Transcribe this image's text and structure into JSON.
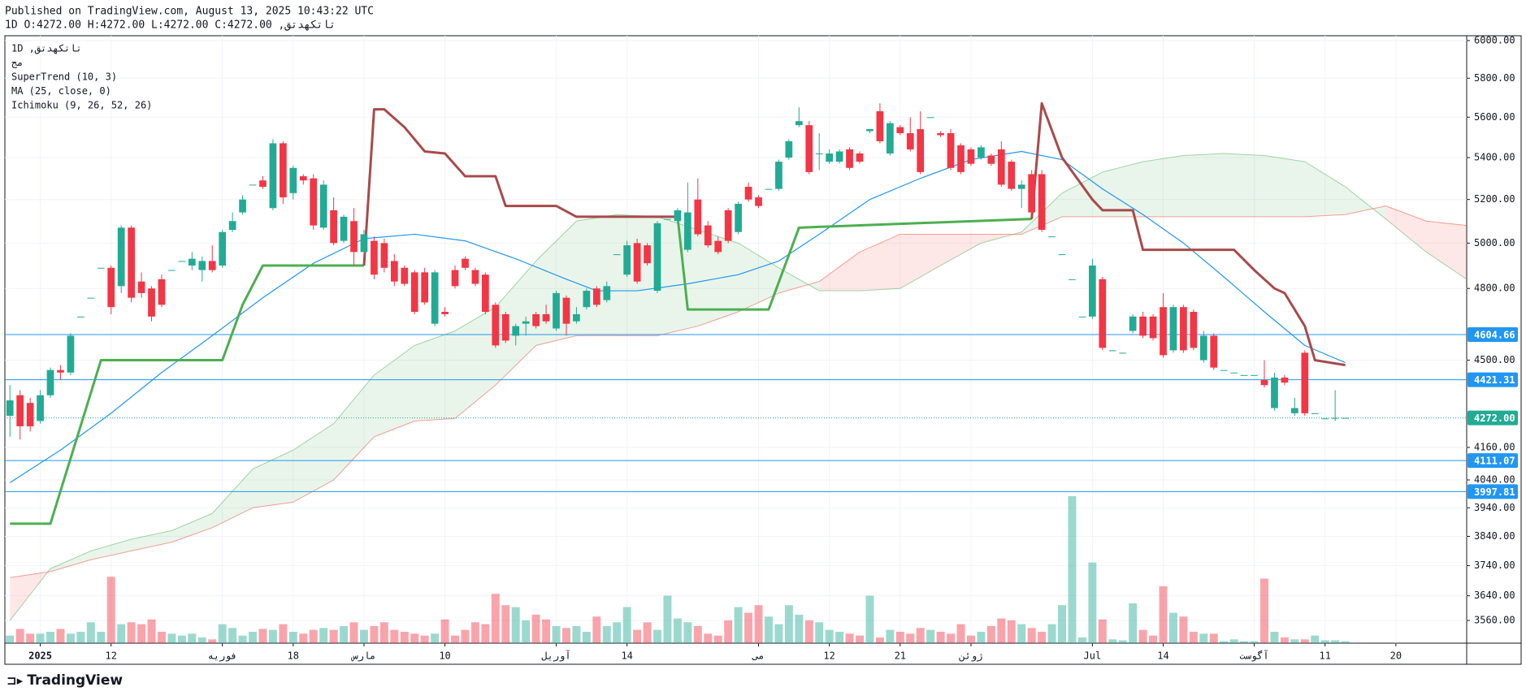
{
  "header": {
    "published": "Published on TradingView.com, August 13, 2025 10:43:22 UTC",
    "ohlc_line": "تاتکهدتق, 1D O:4272.00 H:4272.00 L:4272.00 C:4272.00"
  },
  "footer": {
    "brand": "TradingView"
  },
  "chart_data": {
    "type": "candlestick",
    "legend_lines": [
      "تاتکهدتق, 1D",
      "مج",
      "SuperTrend (10, 3)",
      "MA (25, close, 0)",
      "Ichimoku (9, 26, 52, 26)"
    ],
    "log_scale": true,
    "grid": true,
    "up_color": "#22ab94",
    "down_color": "#f23645",
    "volume_up_color": "rgba(34,171,148,0.45)",
    "volume_down_color": "rgba(242,54,69,0.45)",
    "xlim": [
      -0.5,
      144
    ],
    "xticks": [
      {
        "value": 3,
        "label": "2025"
      },
      {
        "value": 10,
        "label": "12"
      },
      {
        "value": 21,
        "label": "فوریه"
      },
      {
        "value": 28,
        "label": "18"
      },
      {
        "value": 35,
        "label": "مارس"
      },
      {
        "value": 43,
        "label": "10"
      },
      {
        "value": 54,
        "label": "آوریل"
      },
      {
        "value": 61,
        "label": "14"
      },
      {
        "value": 74,
        "label": "می"
      },
      {
        "value": 81,
        "label": "12"
      },
      {
        "value": 88,
        "label": "21"
      },
      {
        "value": 95,
        "label": "ژوئن"
      },
      {
        "value": 107,
        "label": "Jul"
      },
      {
        "value": 114,
        "label": "14"
      },
      {
        "value": 123,
        "label": "آگوست"
      },
      {
        "value": 130,
        "label": "11"
      },
      {
        "value": 137,
        "label": "20"
      }
    ],
    "ylim": [
      3488,
      6026
    ],
    "yticks": [
      {
        "value": 6000,
        "label": "6000.00"
      },
      {
        "value": 5800,
        "label": "5800.00"
      },
      {
        "value": 5600,
        "label": "5600.00"
      },
      {
        "value": 5400,
        "label": "5400.00"
      },
      {
        "value": 5200,
        "label": "5200.00"
      },
      {
        "value": 5000,
        "label": "5000.00"
      },
      {
        "value": 4800,
        "label": "4800.00"
      },
      {
        "value": 4500,
        "label": "4500.00"
      },
      {
        "value": 4160,
        "label": "4160.00"
      },
      {
        "value": 4040,
        "label": "4040.00"
      },
      {
        "value": 3940,
        "label": "3940.00"
      },
      {
        "value": 3840,
        "label": "3840.00"
      },
      {
        "value": 3740,
        "label": "3740.00"
      },
      {
        "value": 3640,
        "label": "3640.00"
      },
      {
        "value": 3560,
        "label": "3560.00"
      }
    ],
    "levels": [
      {
        "value": 4604.66,
        "label": "4604.66",
        "color": "#2196f3"
      },
      {
        "value": 4421.31,
        "label": "4421.31",
        "color": "#2196f3"
      },
      {
        "value": 4272,
        "label": "4272.00",
        "color": "#22ab94",
        "dotted": true
      },
      {
        "value": 4111.07,
        "label": "4111.07",
        "color": "#2196f3"
      },
      {
        "value": 3997.81,
        "label": "3997.81",
        "color": "#2196f3"
      }
    ],
    "vlim": [
      0,
      160
    ],
    "ohlc": [
      [
        4280,
        4400,
        4200,
        4340
      ],
      [
        4360,
        4380,
        4190,
        4240
      ],
      [
        4330,
        4350,
        4220,
        4240
      ],
      [
        4260,
        4380,
        4250,
        4360
      ],
      [
        4360,
        4470,
        4350,
        4460
      ],
      [
        4460,
        4480,
        4420,
        4450
      ],
      [
        4450,
        4610,
        4440,
        4600
      ],
      [
        4680,
        4680,
        4680,
        4680
      ],
      [
        4760,
        4760,
        4760,
        4760
      ],
      [
        4890,
        4890,
        4890,
        4890
      ],
      [
        4890,
        4900,
        4690,
        4720
      ],
      [
        4810,
        5080,
        4780,
        5070
      ],
      [
        5070,
        5080,
        4740,
        4760
      ],
      [
        4830,
        4870,
        4760,
        4780
      ],
      [
        4800,
        4810,
        4660,
        4680
      ],
      [
        4840,
        4860,
        4720,
        4730
      ],
      [
        4880,
        4880,
        4880,
        4880
      ],
      [
        4920,
        4920,
        4920,
        4920
      ],
      [
        4900,
        4960,
        4880,
        4930
      ],
      [
        4880,
        4940,
        4830,
        4920
      ],
      [
        4920,
        4990,
        4870,
        4880
      ],
      [
        4900,
        5060,
        4890,
        5050
      ],
      [
        5060,
        5140,
        5050,
        5100
      ],
      [
        5140,
        5220,
        5130,
        5200
      ],
      [
        5270,
        5270,
        5270,
        5270
      ],
      [
        5290,
        5310,
        5250,
        5260
      ],
      [
        5160,
        5490,
        5150,
        5470
      ],
      [
        5470,
        5480,
        5180,
        5210
      ],
      [
        5230,
        5360,
        5200,
        5350
      ],
      [
        5310,
        5320,
        5270,
        5290
      ],
      [
        5300,
        5320,
        5060,
        5080
      ],
      [
        5070,
        5290,
        5060,
        5270
      ],
      [
        5150,
        5210,
        4990,
        5000
      ],
      [
        5010,
        5130,
        5000,
        5120
      ],
      [
        5100,
        5160,
        4900,
        4960
      ],
      [
        4960,
        5060,
        4950,
        5040
      ],
      [
        5010,
        5030,
        4840,
        4860
      ],
      [
        5000,
        5020,
        4870,
        4890
      ],
      [
        4920,
        4950,
        4810,
        4830
      ],
      [
        4890,
        4900,
        4810,
        4820
      ],
      [
        4870,
        4880,
        4690,
        4700
      ],
      [
        4870,
        4890,
        4730,
        4740
      ],
      [
        4650,
        4880,
        4640,
        4870
      ],
      [
        4700,
        4720,
        4680,
        4690
      ],
      [
        4880,
        4900,
        4800,
        4810
      ],
      [
        4930,
        4940,
        4880,
        4890
      ],
      [
        4880,
        4890,
        4810,
        4820
      ],
      [
        4860,
        4870,
        4690,
        4700
      ],
      [
        4730,
        4740,
        4550,
        4560
      ],
      [
        4690,
        4700,
        4570,
        4580
      ],
      [
        4600,
        4650,
        4560,
        4640
      ],
      [
        4650,
        4680,
        4600,
        4660
      ],
      [
        4690,
        4700,
        4630,
        4640
      ],
      [
        4690,
        4730,
        4650,
        4660
      ],
      [
        4630,
        4790,
        4620,
        4780
      ],
      [
        4760,
        4770,
        4600,
        4650
      ],
      [
        4660,
        4720,
        4650,
        4690
      ],
      [
        4720,
        4800,
        4710,
        4790
      ],
      [
        4800,
        4810,
        4720,
        4730
      ],
      [
        4750,
        4830,
        4740,
        4810
      ],
      [
        4950,
        4950,
        4950,
        4950
      ],
      [
        4860,
        5010,
        4850,
        4990
      ],
      [
        5000,
        5020,
        4820,
        4830
      ],
      [
        4990,
        5000,
        4900,
        4910
      ],
      [
        4790,
        5100,
        4780,
        5090
      ],
      [
        5110,
        5110,
        5110,
        5110
      ],
      [
        5100,
        5160,
        5090,
        5150
      ],
      [
        4970,
        5280,
        4960,
        5140
      ],
      [
        5200,
        5300,
        5030,
        5040
      ],
      [
        5080,
        5100,
        4980,
        4990
      ],
      [
        5010,
        5030,
        4950,
        4960
      ],
      [
        5150,
        5160,
        5000,
        5010
      ],
      [
        5050,
        5190,
        5040,
        5180
      ],
      [
        5260,
        5280,
        5190,
        5200
      ],
      [
        5210,
        5220,
        5160,
        5170
      ],
      [
        5250,
        5250,
        5250,
        5250
      ],
      [
        5250,
        5390,
        5240,
        5380
      ],
      [
        5400,
        5490,
        5390,
        5480
      ],
      [
        5560,
        5650,
        5550,
        5580
      ],
      [
        5560,
        5580,
        5320,
        5330
      ],
      [
        5420,
        5520,
        5340,
        5420
      ],
      [
        5380,
        5440,
        5370,
        5420
      ],
      [
        5380,
        5440,
        5370,
        5430
      ],
      [
        5440,
        5450,
        5340,
        5350
      ],
      [
        5420,
        5430,
        5370,
        5380
      ],
      [
        5530,
        5540,
        5520,
        5540
      ],
      [
        5630,
        5670,
        5470,
        5480
      ],
      [
        5420,
        5580,
        5410,
        5570
      ],
      [
        5550,
        5560,
        5510,
        5520
      ],
      [
        5520,
        5600,
        5430,
        5440
      ],
      [
        5540,
        5630,
        5320,
        5330
      ],
      [
        5600,
        5600,
        5600,
        5600
      ],
      [
        5520,
        5530,
        5500,
        5510
      ],
      [
        5520,
        5540,
        5340,
        5350
      ],
      [
        5460,
        5470,
        5320,
        5330
      ],
      [
        5440,
        5450,
        5360,
        5370
      ],
      [
        5400,
        5460,
        5390,
        5450
      ],
      [
        5410,
        5420,
        5360,
        5370
      ],
      [
        5440,
        5480,
        5260,
        5270
      ],
      [
        5380,
        5390,
        5240,
        5250
      ],
      [
        5250,
        5290,
        5160,
        5270
      ],
      [
        5320,
        5340,
        5130,
        5140
      ],
      [
        5320,
        5340,
        5050,
        5060
      ],
      [
        5030,
        5030,
        5030,
        5030
      ],
      [
        4950,
        4950,
        4950,
        4950
      ],
      [
        4840,
        4840,
        4840,
        4840
      ],
      [
        4680,
        4680,
        4680,
        4680
      ],
      [
        4680,
        4930,
        4670,
        4900
      ],
      [
        4840,
        4850,
        4540,
        4550
      ],
      [
        4540,
        4540,
        4540,
        4540
      ],
      [
        4530,
        4530,
        4530,
        4530
      ],
      [
        4620,
        4690,
        4610,
        4680
      ],
      [
        4680,
        4700,
        4590,
        4600
      ],
      [
        4680,
        4690,
        4580,
        4590
      ],
      [
        4720,
        4780,
        4510,
        4520
      ],
      [
        4540,
        4730,
        4530,
        4720
      ],
      [
        4720,
        4730,
        4530,
        4540
      ],
      [
        4700,
        4710,
        4540,
        4550
      ],
      [
        4500,
        4620,
        4490,
        4600
      ],
      [
        4600,
        4610,
        4460,
        4470
      ],
      [
        4460,
        4460,
        4460,
        4460
      ],
      [
        4450,
        4450,
        4450,
        4450
      ],
      [
        4440,
        4440,
        4440,
        4440
      ],
      [
        4440,
        4440,
        4440,
        4440
      ],
      [
        4420,
        4500,
        4390,
        4400
      ],
      [
        4310,
        4450,
        4300,
        4430
      ],
      [
        4430,
        4440,
        4400,
        4410
      ],
      [
        4290,
        4350,
        4280,
        4310
      ],
      [
        4530,
        4540,
        4280,
        4290
      ],
      [
        4290,
        4290,
        4290,
        4290
      ],
      [
        4270,
        4270,
        4270,
        4270
      ],
      [
        4270,
        4380,
        4260,
        4272
      ],
      [
        4272,
        4272,
        4272,
        4272
      ]
    ],
    "volume": [
      8,
      15,
      10,
      10,
      12,
      15,
      10,
      12,
      22,
      12,
      70,
      20,
      22,
      20,
      25,
      12,
      10,
      8,
      10,
      6,
      4,
      20,
      16,
      8,
      12,
      15,
      14,
      20,
      12,
      10,
      14,
      16,
      14,
      18,
      22,
      14,
      18,
      22,
      14,
      12,
      10,
      8,
      10,
      25,
      8,
      14,
      22,
      20,
      52,
      40,
      38,
      24,
      30,
      25,
      18,
      16,
      18,
      12,
      28,
      18,
      22,
      38,
      14,
      22,
      14,
      50,
      26,
      22,
      18,
      10,
      8,
      24,
      38,
      32,
      40,
      28,
      20,
      40,
      30,
      24,
      22,
      14,
      12,
      10,
      8,
      50,
      6,
      14,
      12,
      10,
      16,
      14,
      12,
      10,
      20,
      8,
      12,
      18,
      26,
      24,
      20,
      16,
      12,
      20,
      40,
      155,
      6,
      85,
      25,
      4,
      3,
      42,
      14,
      8,
      60,
      32,
      28,
      12,
      10,
      10,
      2,
      4,
      2,
      2,
      68,
      12,
      6,
      4,
      4,
      8,
      3,
      3,
      2
    ],
    "lines": [
      {
        "color": "#2196f3",
        "width": 1.2,
        "x": [
          0,
          5,
          10,
          15,
          20,
          25,
          30,
          35,
          40,
          45,
          50,
          55,
          58,
          62,
          67,
          72,
          76,
          80,
          85,
          90,
          95,
          100,
          104,
          108,
          112,
          116,
          120,
          124,
          128,
          132
        ],
        "values": [
          4030,
          4150,
          4290,
          4450,
          4600,
          4760,
          4910,
          5020,
          5040,
          5010,
          4930,
          4840,
          4790,
          4790,
          4820,
          4860,
          4920,
          5040,
          5200,
          5300,
          5390,
          5430,
          5390,
          5250,
          5130,
          5000,
          4850,
          4700,
          4560,
          4490
        ]
      },
      {
        "color": "#4caf50",
        "width": 3,
        "x": [
          0,
          4,
          9,
          21,
          23,
          25,
          35,
          36,
          66,
          67,
          75,
          78,
          101
        ],
        "values": [
          3884,
          3884,
          4500,
          4500,
          4730,
          4900,
          4900,
          null,
          5120,
          4710,
          4710,
          5070,
          5110
        ]
      },
      {
        "color": "#a84a4a",
        "width": 3,
        "x": [
          35,
          36,
          37,
          39,
          41,
          43,
          45,
          48,
          49,
          54,
          56,
          66,
          67,
          101,
          102,
          104,
          107,
          108,
          111,
          112,
          121,
          123,
          125,
          126,
          128,
          129,
          132
        ],
        "values": [
          4900,
          5640,
          5640,
          5550,
          5430,
          5420,
          5310,
          5310,
          5170,
          5170,
          5120,
          5120,
          null,
          5110,
          5670,
          5400,
          5200,
          5150,
          5150,
          4970,
          4970,
          4880,
          4800,
          4780,
          4640,
          4500,
          4480
        ]
      }
    ],
    "cloud": {
      "up_color": "rgba(76,175,80,0.12)",
      "down_color": "rgba(244,67,54,0.12)",
      "a_color": "rgba(76,175,80,0.5)",
      "b_color": "rgba(244,67,54,0.5)",
      "x": [
        0,
        4,
        8,
        12,
        16,
        20,
        24,
        28,
        32,
        36,
        40,
        44,
        48,
        52,
        56,
        60,
        64,
        68,
        72,
        76,
        80,
        84,
        88,
        92,
        96,
        100,
        104,
        108,
        112,
        116,
        120,
        124,
        128,
        132,
        136,
        140,
        144
      ],
      "span_a": [
        3560,
        3730,
        3790,
        3830,
        3860,
        3920,
        4080,
        4150,
        4250,
        4440,
        4560,
        4620,
        4720,
        4920,
        5100,
        5130,
        5120,
        5060,
        5000,
        4890,
        4790,
        4790,
        4800,
        4900,
        5000,
        5050,
        5230,
        5330,
        5380,
        5410,
        5420,
        5410,
        5380,
        5260,
        5110,
        4960,
        4840
      ],
      "span_b": [
        3700,
        3720,
        3760,
        3790,
        3820,
        3870,
        3940,
        3960,
        4040,
        4200,
        4260,
        4270,
        4400,
        4560,
        4600,
        4600,
        4600,
        4640,
        4700,
        4780,
        4830,
        4960,
        5040,
        5040,
        5040,
        5040,
        5120,
        5120,
        5120,
        5120,
        5120,
        5120,
        5120,
        5130,
        5170,
        5100,
        5080
      ]
    }
  }
}
